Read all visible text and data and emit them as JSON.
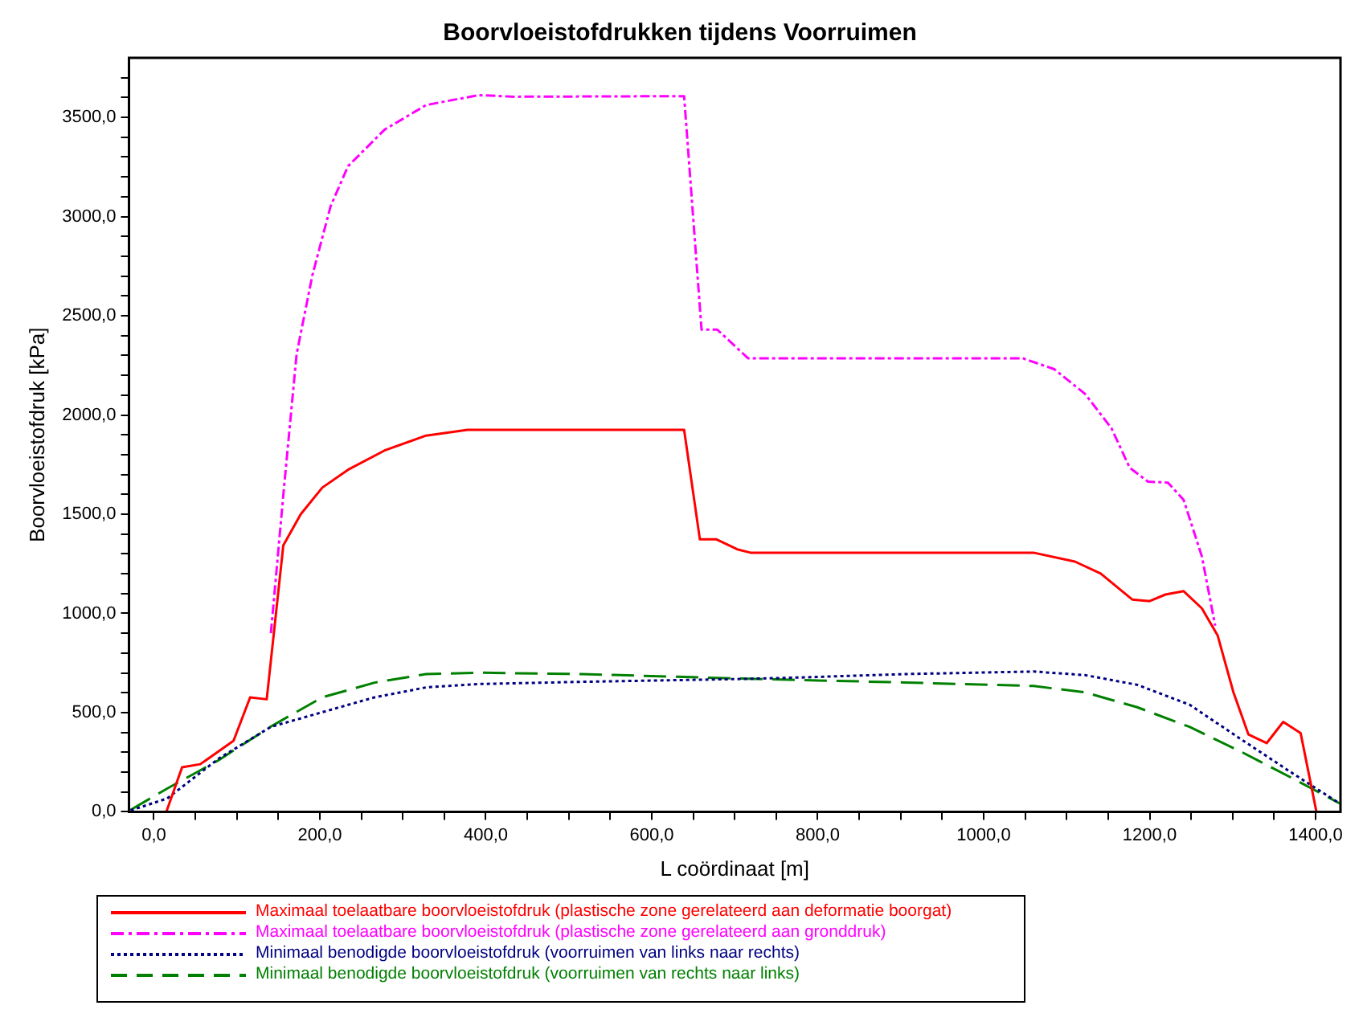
{
  "chart_data": {
    "type": "line",
    "title": "Boorvloeistofdrukken tijdens Voorruimen",
    "xlabel": "L coördinaat [m]",
    "ylabel": "Boorvloeistofdruk [kPa]",
    "xlim": [
      -30,
      1430
    ],
    "ylim": [
      0,
      3800
    ],
    "xticks": [
      {
        "value": 0,
        "label": "0,0"
      },
      {
        "value": 50,
        "label": null
      },
      {
        "value": 100,
        "label": null
      },
      {
        "value": 150,
        "label": null
      },
      {
        "value": 200,
        "label": "200,0"
      },
      {
        "value": 250,
        "label": null
      },
      {
        "value": 300,
        "label": null
      },
      {
        "value": 350,
        "label": null
      },
      {
        "value": 400,
        "label": "400,0"
      },
      {
        "value": 450,
        "label": null
      },
      {
        "value": 500,
        "label": null
      },
      {
        "value": 550,
        "label": null
      },
      {
        "value": 600,
        "label": "600,0"
      },
      {
        "value": 650,
        "label": null
      },
      {
        "value": 700,
        "label": null
      },
      {
        "value": 750,
        "label": null
      },
      {
        "value": 800,
        "label": "800,0"
      },
      {
        "value": 850,
        "label": null
      },
      {
        "value": 900,
        "label": null
      },
      {
        "value": 950,
        "label": null
      },
      {
        "value": 1000,
        "label": "1000,0"
      },
      {
        "value": 1050,
        "label": null
      },
      {
        "value": 1100,
        "label": null
      },
      {
        "value": 1150,
        "label": null
      },
      {
        "value": 1200,
        "label": "1200,0"
      },
      {
        "value": 1250,
        "label": null
      },
      {
        "value": 1300,
        "label": null
      },
      {
        "value": 1350,
        "label": null
      },
      {
        "value": 1400,
        "label": "1400,0"
      }
    ],
    "yticks": [
      {
        "value": 0,
        "label": "0,0"
      },
      {
        "value": 100,
        "label": null
      },
      {
        "value": 200,
        "label": null
      },
      {
        "value": 300,
        "label": null
      },
      {
        "value": 400,
        "label": null
      },
      {
        "value": 500,
        "label": "500,0"
      },
      {
        "value": 600,
        "label": null
      },
      {
        "value": 700,
        "label": null
      },
      {
        "value": 800,
        "label": null
      },
      {
        "value": 900,
        "label": null
      },
      {
        "value": 1000,
        "label": "1000,0"
      },
      {
        "value": 1100,
        "label": null
      },
      {
        "value": 1200,
        "label": null
      },
      {
        "value": 1300,
        "label": null
      },
      {
        "value": 1400,
        "label": null
      },
      {
        "value": 1500,
        "label": "1500,0"
      },
      {
        "value": 1600,
        "label": null
      },
      {
        "value": 1700,
        "label": null
      },
      {
        "value": 1800,
        "label": null
      },
      {
        "value": 1900,
        "label": null
      },
      {
        "value": 2000,
        "label": "2000,0"
      },
      {
        "value": 2100,
        "label": null
      },
      {
        "value": 2200,
        "label": null
      },
      {
        "value": 2300,
        "label": null
      },
      {
        "value": 2400,
        "label": null
      },
      {
        "value": 2500,
        "label": "2500,0"
      },
      {
        "value": 2600,
        "label": null
      },
      {
        "value": 2700,
        "label": null
      },
      {
        "value": 2800,
        "label": null
      },
      {
        "value": 2900,
        "label": null
      },
      {
        "value": 3000,
        "label": "3000,0"
      },
      {
        "value": 3100,
        "label": null
      },
      {
        "value": 3200,
        "label": null
      },
      {
        "value": 3300,
        "label": null
      },
      {
        "value": 3400,
        "label": null
      },
      {
        "value": 3500,
        "label": "3500,0"
      },
      {
        "value": 3600,
        "label": null
      },
      {
        "value": 3700,
        "label": null
      }
    ],
    "grid": false,
    "legend": "bottom",
    "marker": "none",
    "series": [
      {
        "name": "Maximaal toelaatbare boorvloeistofdruk (plastische zone gerelateerd aan deformatie boorgat)",
        "color": "#ff0000",
        "line_style": "solid",
        "x": [
          15,
          34,
          56,
          96,
          116,
          136,
          156,
          177,
          203,
          234,
          278,
          328,
          378,
          639,
          658,
          678,
          703,
          719,
          1060,
          1110,
          1141,
          1179,
          1200,
          1219,
          1241,
          1263,
          1282,
          1301,
          1319,
          1341,
          1361,
          1382,
          1401
        ],
        "values": [
          0,
          224,
          240,
          358,
          577,
          567,
          1343,
          1500,
          1634,
          1724,
          1821,
          1896,
          1925,
          1925,
          1373,
          1373,
          1323,
          1306,
          1306,
          1261,
          1201,
          1070,
          1062,
          1095,
          1112,
          1025,
          888,
          602,
          390,
          346,
          453,
          396,
          0
        ]
      },
      {
        "name": "Maximaal toelaatbare boorvloeistofdruk (plastische zone gerelateerd aan gronddruk)",
        "color": "#ff00ff",
        "line_style": "dashdot",
        "x": [
          141,
          156,
          172,
          191,
          213,
          234,
          278,
          328,
          391,
          435,
          639,
          660,
          679,
          716,
          1047,
          1085,
          1122,
          1154,
          1176,
          1198,
          1222,
          1241,
          1263,
          1279
        ],
        "values": [
          900,
          1597,
          2306,
          2704,
          3052,
          3254,
          3438,
          3562,
          3612,
          3604,
          3607,
          2430,
          2430,
          2286,
          2286,
          2231,
          2107,
          1933,
          1734,
          1664,
          1659,
          1572,
          1286,
          938
        ]
      },
      {
        "name": "Minimaal benodigde boorvloeistofdruk (voorruimen van links naar rechts)",
        "color": "#000080",
        "line_style": "dotted",
        "x": [
          -28,
          16,
          78,
          141,
          203,
          266,
          328,
          391,
          516,
          703,
          779,
          904,
          1060,
          1122,
          1185,
          1248,
          1310,
          1373,
          1429
        ],
        "values": [
          7,
          67,
          268,
          428,
          502,
          577,
          627,
          644,
          655,
          669,
          677,
          694,
          707,
          689,
          640,
          540,
          366,
          192,
          42
        ]
      },
      {
        "name": "Minimaal benodigde boorvloeistofdruk (voorruimen van rechts naar links)",
        "color": "#008000",
        "line_style": "dashed",
        "x": [
          -28,
          16,
          78,
          141,
          203,
          266,
          328,
          391,
          516,
          703,
          779,
          904,
          1060,
          1122,
          1185,
          1248,
          1310,
          1373,
          1429
        ],
        "values": [
          10,
          117,
          260,
          430,
          577,
          651,
          694,
          701,
          694,
          672,
          664,
          652,
          634,
          602,
          527,
          428,
          303,
          167,
          42
        ]
      }
    ]
  }
}
